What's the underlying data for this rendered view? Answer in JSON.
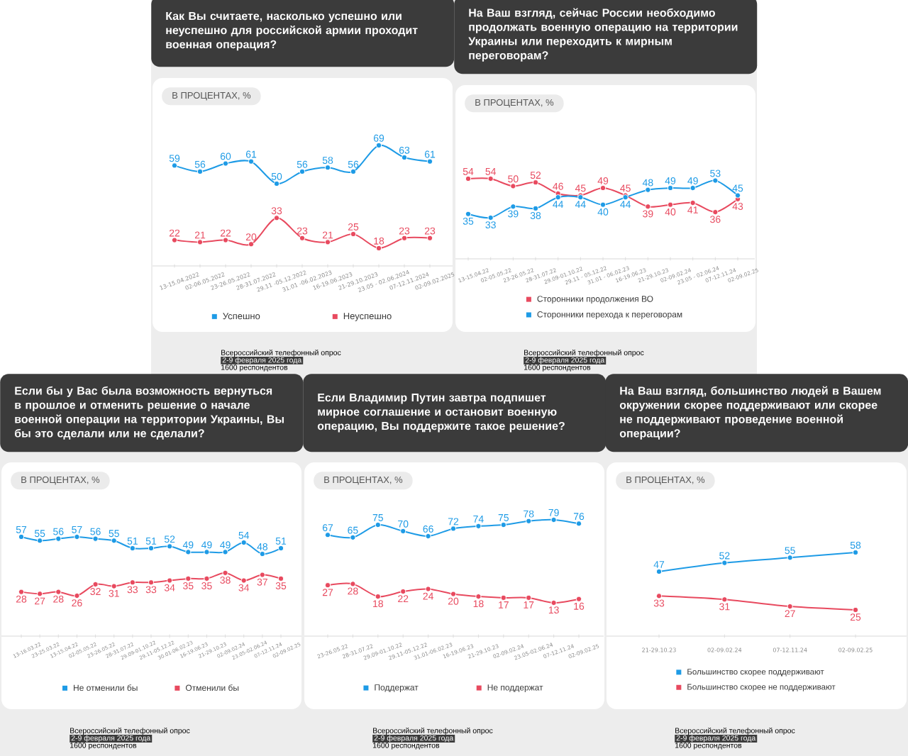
{
  "chart_data": [
    {
      "type": "line",
      "title": "Как Вы считаете, насколько успешно или неуспешно для российской армии проходит военная операция?",
      "subtitle": "В ПРОЦЕНТАХ, %",
      "categories": [
        "13-15.04.2022",
        "02-06.05.2022",
        "23-26.05.2022",
        "28-31.07.2022",
        "29.11 -05.12.2022",
        "31.01 -06.02.2023",
        "16-19.06.2023",
        "21-29.10.2023",
        "23.05 - 02.06.2024",
        "07-12.11.2024",
        "02-09.02.2025"
      ],
      "series": [
        {
          "name": "Успешно",
          "color": "#1e9be6",
          "values": [
            59,
            56,
            60,
            61,
            50,
            56,
            58,
            56,
            69,
            63,
            61
          ]
        },
        {
          "name": "Неуспешно",
          "color": "#e84a5f",
          "values": [
            22,
            21,
            22,
            20,
            33,
            23,
            21,
            25,
            18,
            23,
            23
          ]
        }
      ],
      "data_labels": true,
      "legend": "bottom",
      "marker": "circle",
      "line_style": "solid",
      "tick_labels": "x",
      "annotations": [
        "Всероссийский телефонный опрос",
        "2-9 февраля 2025 года",
        "1600 респондентов"
      ]
    },
    {
      "type": "line",
      "title": "На Ваш взгляд, сейчас России необходимо продолжать военную операцию на территории Украины или переходить к мирным переговорам?",
      "subtitle": "В ПРОЦЕНТАХ, %",
      "categories": [
        "13-15.04.22",
        "02-05.05.22",
        "23-26.05.22",
        "28-31.07.22",
        "29.09-01.10.22",
        "29.11 - 05.12.22",
        "31.01 - 06.02.23",
        "16-19.06.23",
        "21-29.10.23",
        "02-09.02.24",
        "23.05 - 02.06.24",
        "07-12.11.24",
        "02-09.02.25"
      ],
      "series": [
        {
          "name": "Сторонники продолжения ВО",
          "color": "#e84a5f",
          "values": [
            54,
            54,
            50,
            52,
            46,
            45,
            49,
            45,
            39,
            40,
            41,
            36,
            43
          ]
        },
        {
          "name": "Сторонники перехода к переговорам",
          "color": "#1e9be6",
          "values": [
            35,
            33,
            39,
            38,
            44,
            44,
            40,
            44,
            48,
            49,
            49,
            53,
            45
          ]
        }
      ],
      "data_labels": true,
      "legend": "bottom",
      "marker": "circle",
      "line_style": "solid",
      "tick_labels": "x",
      "annotations": [
        "Всероссийский телефонный опрос",
        "2-9 февраля 2025 года",
        "1600 респондентов"
      ]
    },
    {
      "type": "line",
      "title": "Если бы у Вас была возможность вернуться в прошлое и отменить решение о начале военной операции на территории Украины, Вы бы это сделали или не сделали?",
      "subtitle": "В ПРОЦЕНТАХ, %",
      "categories": [
        "13-16.03.22",
        "23-25.03.22",
        "13-15.04.22",
        "02-05.05.22",
        "23-26.05.22",
        "28-31.07.22",
        "29.09-01.10.22",
        "29.11-05.12.22",
        "30.01-06.02.23",
        "16-19.06.23",
        "21-29.10.23",
        "02-09.02.24",
        "23.05-02.06.24",
        "07-12.11.24",
        "02-09.02.25"
      ],
      "series": [
        {
          "name": "Не отменили бы",
          "color": "#1e9be6",
          "values": [
            57,
            55,
            56,
            57,
            56,
            55,
            51,
            51,
            52,
            49,
            49,
            49,
            54,
            48,
            51
          ]
        },
        {
          "name": "Отменили бы",
          "color": "#e84a5f",
          "values": [
            28,
            27,
            28,
            26,
            32,
            31,
            33,
            33,
            34,
            35,
            35,
            38,
            34,
            37,
            35
          ]
        }
      ],
      "data_labels": true,
      "legend": "bottom",
      "marker": "circle",
      "line_style": "solid",
      "tick_labels": "x",
      "annotations": [
        "Всероссийский телефонный опрос",
        "2-9 февраля 2025 года",
        "1600 респондентов"
      ]
    },
    {
      "type": "line",
      "title": "Если Владимир Путин завтра подпишет мирное соглашение и остановит военную операцию, Вы поддержите такое решение?",
      "subtitle": "В ПРОЦЕНТАХ, %",
      "categories": [
        "23-26.05.22",
        "28-31.07.22",
        "29.09-01.10.22",
        "29.11-05.12.22",
        "31.01-06.02.23",
        "16-19.06.23",
        "21-29.10.23",
        "02-09.02.24",
        "23.05-02.06.24",
        "07-12.11.24",
        "02-09.02.25"
      ],
      "series": [
        {
          "name": "Поддержат",
          "color": "#1e9be6",
          "values": [
            67,
            65,
            75,
            70,
            66,
            72,
            74,
            75,
            78,
            79,
            76
          ]
        },
        {
          "name": "Не поддержат",
          "color": "#e84a5f",
          "values": [
            27,
            28,
            18,
            22,
            24,
            20,
            18,
            17,
            17,
            13,
            16
          ]
        }
      ],
      "data_labels": true,
      "legend": "bottom",
      "marker": "circle",
      "line_style": "solid",
      "tick_labels": "x",
      "annotations": [
        "Всероссийский телефонный опрос",
        "2-9 февраля 2025 года",
        "1600 респондентов"
      ]
    },
    {
      "type": "line",
      "title": "На Ваш взгляд, большинство людей в Вашем окружении скорее поддерживают или скорее не поддерживают проведение военной операции?",
      "subtitle": "В ПРОЦЕНТАХ, %",
      "categories": [
        "21-29.10.23",
        "02-09.02.24",
        "07-12.11.24",
        "02-09.02.25"
      ],
      "series": [
        {
          "name": "Большинство скорее поддерживают",
          "color": "#1e9be6",
          "values": [
            47,
            52,
            55,
            58
          ]
        },
        {
          "name": "Большинство скорее не поддерживают",
          "color": "#e84a5f",
          "values": [
            33,
            31,
            27,
            25
          ]
        }
      ],
      "data_labels": true,
      "legend": "bottom",
      "marker": "circle",
      "line_style": "solid",
      "tick_labels": "x",
      "annotations": [
        "Всероссийский телефонный опрос",
        "2-9 февраля 2025 года",
        "1600 респондентов"
      ]
    }
  ]
}
